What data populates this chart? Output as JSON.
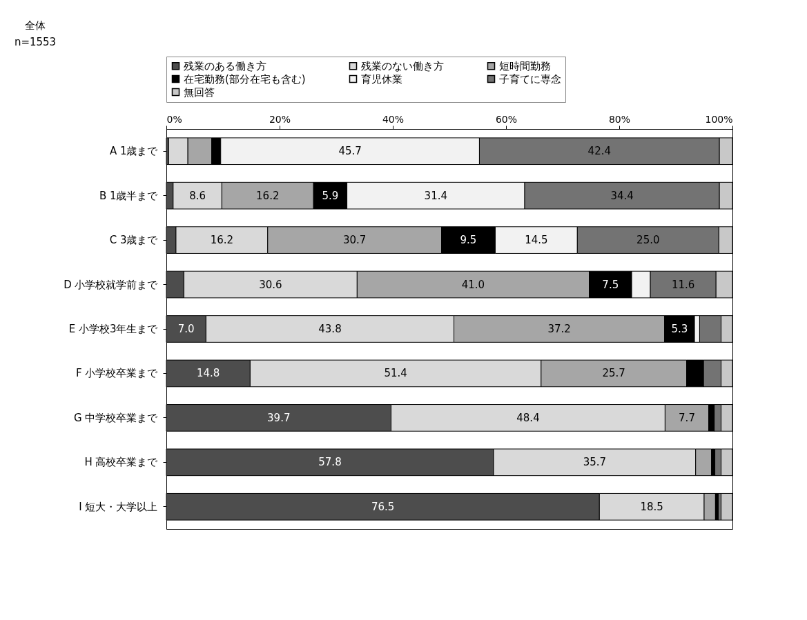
{
  "chart_data": {
    "type": "bar",
    "orientation": "horizontal",
    "stacked": true,
    "categories": [
      "A 1歳まで",
      "B 1歳半まで",
      "C 3歳まで",
      "D 小学校就学前まで",
      "E 小学校3年生まで",
      "F 小学校卒業まで",
      "G 中学校卒業まで",
      "H 高校卒業まで",
      "I 短大・大学以上"
    ],
    "series": [
      {
        "name": "残業のある働き方",
        "color": "#4d4d4d",
        "values": [
          0.4,
          1.2,
          1.7,
          3.1,
          7.0,
          14.8,
          39.7,
          57.8,
          76.5
        ],
        "value_labels": [
          null,
          null,
          null,
          null,
          "7.0",
          "14.8",
          "39.7",
          "57.8",
          "76.5"
        ]
      },
      {
        "name": "残業のない働き方",
        "color": "#d9d9d9",
        "values": [
          3.4,
          8.6,
          16.2,
          30.6,
          43.8,
          51.4,
          48.4,
          35.7,
          18.5
        ],
        "value_labels": [
          null,
          "8.6",
          "16.2",
          "30.6",
          "43.8",
          "51.4",
          "48.4",
          "35.7",
          "18.5"
        ]
      },
      {
        "name": "短時間勤務",
        "color": "#a6a6a6",
        "values": [
          4.2,
          16.2,
          30.7,
          41.0,
          37.2,
          25.7,
          7.7,
          2.8,
          2.0
        ],
        "value_labels": [
          null,
          "16.2",
          "30.7",
          "41.0",
          "37.2",
          "25.7",
          "7.7",
          null,
          null
        ]
      },
      {
        "name": "在宅勤務(部分在宅も含む)",
        "color": "#000000",
        "values": [
          1.6,
          5.9,
          9.5,
          7.5,
          5.3,
          3.0,
          1.0,
          0.6,
          0.5
        ],
        "value_labels": [
          null,
          "5.9",
          "9.5",
          "7.5",
          "5.3",
          null,
          null,
          null,
          null
        ]
      },
      {
        "name": "育児休業",
        "color": "#f2f2f2",
        "values": [
          45.7,
          31.4,
          14.5,
          3.3,
          0.9,
          0,
          0,
          0,
          0
        ],
        "value_labels": [
          "45.7",
          "31.4",
          "14.5",
          null,
          null,
          null,
          null,
          null,
          null
        ]
      },
      {
        "name": "子育てに専念",
        "color": "#737373",
        "values": [
          42.4,
          34.4,
          25.0,
          11.6,
          3.8,
          3.1,
          1.2,
          1.1,
          0.5
        ],
        "value_labels": [
          "42.4",
          "34.4",
          "25.0",
          "11.6",
          null,
          null,
          null,
          null,
          null
        ]
      },
      {
        "name": "無回答",
        "color": "#c8c8c8",
        "values": [
          2.3,
          2.3,
          2.4,
          2.9,
          2.0,
          2.0,
          2.0,
          2.0,
          2.0
        ],
        "value_labels": [
          null,
          null,
          null,
          null,
          null,
          null,
          null,
          null,
          null
        ]
      }
    ],
    "xlim": [
      0,
      100
    ],
    "xticks": [
      {
        "value": 0,
        "label": "0%"
      },
      {
        "value": 20,
        "label": "20%"
      },
      {
        "value": 40,
        "label": "40%"
      },
      {
        "value": 60,
        "label": "60%"
      },
      {
        "value": 80,
        "label": "80%"
      },
      {
        "value": 100,
        "label": "100%"
      }
    ],
    "grid": false,
    "legend": "top",
    "annotations": [
      "全体",
      "n=1553"
    ]
  }
}
